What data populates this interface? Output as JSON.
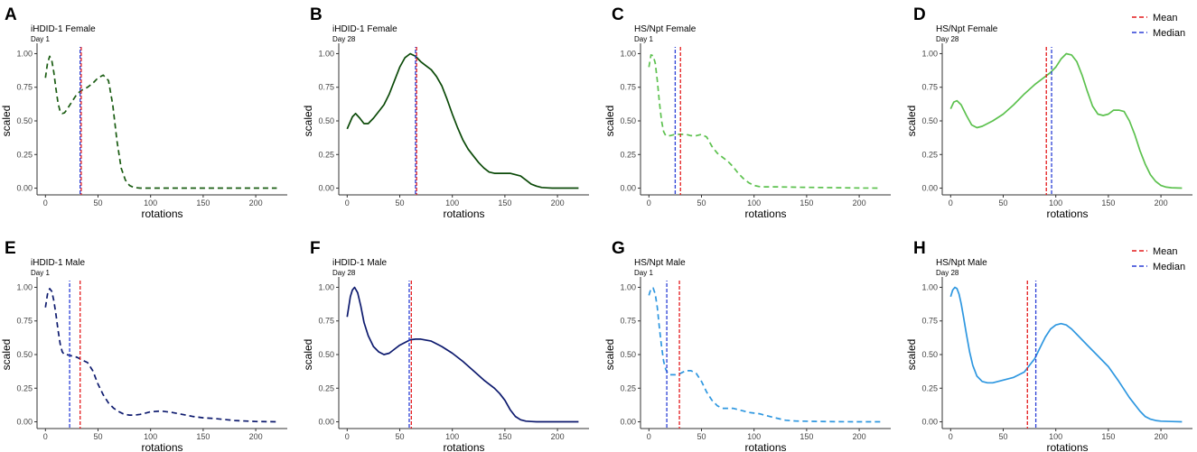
{
  "figure": {
    "legend": [
      {
        "label": "Mean",
        "color": "#e41a1c"
      },
      {
        "label": "Median",
        "color": "#2b3fd6"
      }
    ]
  },
  "chart_data": [
    {
      "type": "line",
      "letter": "A",
      "title": "iHDID-1 Female",
      "subtitle": "Day 1",
      "xlabel": "rotations",
      "ylabel": "scaled",
      "xlim": [
        -8,
        230
      ],
      "ylim": [
        -0.05,
        1.05
      ],
      "xticks": [
        "0",
        "50",
        "100",
        "150",
        "200"
      ],
      "yticks": [
        "0.00",
        "0.25",
        "0.50",
        "0.75",
        "1.00"
      ],
      "color": "#1a5c12",
      "dash": true,
      "mean": 34,
      "median": 33,
      "x": [
        0,
        2,
        4,
        6,
        8,
        10,
        12,
        14,
        16,
        18,
        20,
        25,
        30,
        35,
        40,
        45,
        50,
        55,
        60,
        64,
        68,
        72,
        76,
        80,
        84,
        90,
        95,
        100,
        110,
        120,
        140,
        160,
        180,
        200,
        220
      ],
      "y": [
        0.82,
        0.93,
        0.98,
        0.95,
        0.86,
        0.74,
        0.63,
        0.57,
        0.555,
        0.56,
        0.58,
        0.64,
        0.7,
        0.73,
        0.75,
        0.78,
        0.82,
        0.84,
        0.8,
        0.62,
        0.35,
        0.15,
        0.06,
        0.02,
        0.005,
        0.0,
        0.0,
        0.0,
        0.0,
        0.0,
        0.0,
        0.0,
        0.0,
        0.0,
        0.0
      ]
    },
    {
      "type": "line",
      "letter": "B",
      "title": "iHDID-1 Female",
      "subtitle": "Day 28",
      "xlabel": "rotations",
      "ylabel": "scaled",
      "xlim": [
        -8,
        230
      ],
      "ylim": [
        -0.05,
        1.05
      ],
      "xticks": [
        "0",
        "50",
        "100",
        "150",
        "200"
      ],
      "yticks": [
        "0.00",
        "0.25",
        "0.50",
        "0.75",
        "1.00"
      ],
      "color": "#0b4a08",
      "dash": false,
      "mean": 66,
      "median": 65,
      "x": [
        0,
        5,
        8,
        12,
        16,
        20,
        25,
        30,
        35,
        40,
        45,
        50,
        55,
        60,
        65,
        70,
        75,
        80,
        85,
        90,
        95,
        100,
        105,
        110,
        115,
        120,
        125,
        130,
        135,
        140,
        145,
        150,
        155,
        160,
        165,
        170,
        175,
        180,
        185,
        190,
        195,
        200,
        210,
        220
      ],
      "y": [
        0.44,
        0.53,
        0.555,
        0.52,
        0.48,
        0.48,
        0.52,
        0.57,
        0.62,
        0.7,
        0.8,
        0.9,
        0.97,
        1.0,
        0.98,
        0.94,
        0.91,
        0.88,
        0.83,
        0.76,
        0.66,
        0.55,
        0.45,
        0.36,
        0.29,
        0.24,
        0.19,
        0.15,
        0.12,
        0.11,
        0.11,
        0.11,
        0.11,
        0.1,
        0.09,
        0.06,
        0.03,
        0.015,
        0.005,
        0.002,
        0.0,
        0.0,
        0.0,
        0.0
      ]
    },
    {
      "type": "line",
      "letter": "C",
      "title": "HS/Npt Female",
      "subtitle": "Day 1",
      "xlabel": "rotations",
      "ylabel": "scaled",
      "xlim": [
        -8,
        230
      ],
      "ylim": [
        -0.05,
        1.05
      ],
      "xticks": [
        "0",
        "50",
        "100",
        "150",
        "200"
      ],
      "yticks": [
        "0.00",
        "0.25",
        "0.50",
        "0.75",
        "1.00"
      ],
      "color": "#5cc14e",
      "dash": true,
      "mean": 30,
      "median": 25,
      "x": [
        0,
        2,
        4,
        6,
        8,
        10,
        12,
        14,
        16,
        20,
        25,
        30,
        35,
        40,
        45,
        50,
        55,
        60,
        65,
        70,
        75,
        80,
        85,
        90,
        95,
        100,
        105,
        110,
        120,
        140,
        160,
        180,
        200,
        220
      ],
      "y": [
        0.9,
        0.99,
        0.985,
        0.93,
        0.8,
        0.64,
        0.5,
        0.42,
        0.39,
        0.39,
        0.4,
        0.4,
        0.4,
        0.39,
        0.39,
        0.4,
        0.38,
        0.31,
        0.26,
        0.23,
        0.2,
        0.16,
        0.11,
        0.07,
        0.04,
        0.02,
        0.012,
        0.01,
        0.01,
        0.007,
        0.005,
        0.003,
        0.001,
        0.0
      ]
    },
    {
      "type": "line",
      "letter": "D",
      "title": "HS/Npt Female",
      "subtitle": "Day 28",
      "xlabel": "rotations",
      "ylabel": "scaled",
      "xlim": [
        -8,
        230
      ],
      "ylim": [
        -0.05,
        1.05
      ],
      "xticks": [
        "0",
        "50",
        "100",
        "150",
        "200"
      ],
      "yticks": [
        "0.00",
        "0.25",
        "0.50",
        "0.75",
        "1.00"
      ],
      "color": "#5cc14e",
      "dash": false,
      "mean": 91,
      "median": 96,
      "x": [
        0,
        3,
        6,
        10,
        15,
        20,
        25,
        30,
        40,
        50,
        60,
        70,
        80,
        90,
        95,
        100,
        105,
        110,
        115,
        120,
        125,
        130,
        135,
        140,
        145,
        150,
        155,
        160,
        165,
        170,
        175,
        180,
        185,
        190,
        195,
        200,
        205,
        210,
        220
      ],
      "y": [
        0.59,
        0.64,
        0.65,
        0.62,
        0.54,
        0.47,
        0.45,
        0.46,
        0.5,
        0.55,
        0.62,
        0.7,
        0.77,
        0.83,
        0.86,
        0.9,
        0.96,
        1.0,
        0.99,
        0.94,
        0.84,
        0.72,
        0.61,
        0.55,
        0.54,
        0.55,
        0.58,
        0.58,
        0.57,
        0.5,
        0.4,
        0.28,
        0.18,
        0.1,
        0.05,
        0.02,
        0.008,
        0.003,
        0.0
      ]
    },
    {
      "type": "line",
      "letter": "E",
      "title": "iHDID-1 Male",
      "subtitle": "Day 1",
      "xlabel": "rotations",
      "ylabel": "scaled",
      "xlim": [
        -8,
        230
      ],
      "ylim": [
        -0.05,
        1.05
      ],
      "xticks": [
        "0",
        "50",
        "100",
        "150",
        "200"
      ],
      "yticks": [
        "0.00",
        "0.25",
        "0.50",
        "0.75",
        "1.00"
      ],
      "color": "#0d1a6e",
      "dash": true,
      "mean": 33,
      "median": 23,
      "x": [
        0,
        2,
        4,
        6,
        8,
        10,
        12,
        14,
        16,
        18,
        20,
        25,
        30,
        35,
        40,
        45,
        50,
        55,
        60,
        65,
        70,
        75,
        80,
        85,
        90,
        95,
        100,
        110,
        120,
        130,
        140,
        150,
        160,
        180,
        200,
        220
      ],
      "y": [
        0.85,
        0.95,
        0.99,
        0.97,
        0.9,
        0.8,
        0.68,
        0.58,
        0.52,
        0.5,
        0.5,
        0.49,
        0.48,
        0.46,
        0.44,
        0.38,
        0.28,
        0.2,
        0.14,
        0.1,
        0.075,
        0.055,
        0.05,
        0.05,
        0.055,
        0.065,
        0.075,
        0.08,
        0.07,
        0.055,
        0.04,
        0.03,
        0.025,
        0.01,
        0.002,
        0.0
      ]
    },
    {
      "type": "line",
      "letter": "F",
      "title": "iHDID-1 Male",
      "subtitle": "Day 28",
      "xlabel": "rotations",
      "ylabel": "scaled",
      "xlim": [
        -8,
        230
      ],
      "ylim": [
        -0.05,
        1.05
      ],
      "xticks": [
        "0",
        "50",
        "100",
        "150",
        "200"
      ],
      "yticks": [
        "0.00",
        "0.25",
        "0.50",
        "0.75",
        "1.00"
      ],
      "color": "#0d1a6e",
      "dash": false,
      "mean": 61,
      "median": 59,
      "x": [
        0,
        3,
        5,
        7,
        10,
        13,
        16,
        20,
        25,
        30,
        35,
        40,
        45,
        50,
        55,
        60,
        65,
        70,
        80,
        90,
        100,
        110,
        120,
        130,
        140,
        145,
        150,
        155,
        160,
        165,
        170,
        175,
        180,
        190,
        200,
        210,
        220
      ],
      "y": [
        0.78,
        0.93,
        0.98,
        1.0,
        0.96,
        0.86,
        0.74,
        0.64,
        0.56,
        0.52,
        0.5,
        0.51,
        0.54,
        0.57,
        0.59,
        0.61,
        0.615,
        0.615,
        0.6,
        0.56,
        0.51,
        0.45,
        0.38,
        0.31,
        0.25,
        0.21,
        0.16,
        0.09,
        0.04,
        0.015,
        0.005,
        0.002,
        0.0,
        0.0,
        0.0,
        0.0,
        0.0
      ]
    },
    {
      "type": "line",
      "letter": "G",
      "title": "HS/Npt Male",
      "subtitle": "Day 1",
      "xlabel": "rotations",
      "ylabel": "scaled",
      "xlim": [
        -8,
        230
      ],
      "ylim": [
        -0.05,
        1.05
      ],
      "xticks": [
        "0",
        "50",
        "100",
        "150",
        "200"
      ],
      "yticks": [
        "0.00",
        "0.25",
        "0.50",
        "0.75",
        "1.00"
      ],
      "color": "#2e97e0",
      "dash": true,
      "mean": 29,
      "median": 17,
      "x": [
        0,
        2,
        4,
        6,
        8,
        10,
        12,
        14,
        16,
        18,
        20,
        25,
        30,
        35,
        40,
        45,
        50,
        55,
        60,
        65,
        70,
        75,
        80,
        85,
        90,
        95,
        100,
        105,
        110,
        120,
        130,
        140,
        160,
        180,
        200,
        220
      ],
      "y": [
        0.94,
        0.99,
        0.995,
        0.95,
        0.85,
        0.7,
        0.56,
        0.45,
        0.39,
        0.36,
        0.35,
        0.35,
        0.36,
        0.38,
        0.38,
        0.36,
        0.3,
        0.22,
        0.16,
        0.12,
        0.1,
        0.1,
        0.1,
        0.09,
        0.08,
        0.07,
        0.065,
        0.06,
        0.05,
        0.03,
        0.012,
        0.006,
        0.003,
        0.001,
        0.0,
        0.0
      ]
    },
    {
      "type": "line",
      "letter": "H",
      "title": "HS/Npt Male",
      "subtitle": "Day 28",
      "xlabel": "rotations",
      "ylabel": "scaled",
      "xlim": [
        -8,
        230
      ],
      "ylim": [
        -0.05,
        1.05
      ],
      "xticks": [
        "0",
        "50",
        "100",
        "150",
        "200"
      ],
      "yticks": [
        "0.00",
        "0.25",
        "0.50",
        "0.75",
        "1.00"
      ],
      "color": "#2e97e0",
      "dash": false,
      "mean": 73,
      "median": 81,
      "x": [
        0,
        2,
        4,
        6,
        8,
        10,
        12,
        15,
        18,
        21,
        25,
        30,
        35,
        40,
        50,
        60,
        70,
        80,
        85,
        90,
        95,
        100,
        105,
        110,
        115,
        120,
        130,
        140,
        150,
        160,
        170,
        180,
        185,
        190,
        195,
        200,
        210,
        220
      ],
      "y": [
        0.93,
        0.98,
        1.0,
        0.99,
        0.95,
        0.88,
        0.79,
        0.65,
        0.52,
        0.42,
        0.34,
        0.3,
        0.29,
        0.29,
        0.31,
        0.33,
        0.37,
        0.47,
        0.55,
        0.63,
        0.69,
        0.72,
        0.73,
        0.72,
        0.69,
        0.65,
        0.57,
        0.49,
        0.41,
        0.3,
        0.18,
        0.08,
        0.04,
        0.02,
        0.01,
        0.005,
        0.002,
        0.0
      ]
    }
  ]
}
